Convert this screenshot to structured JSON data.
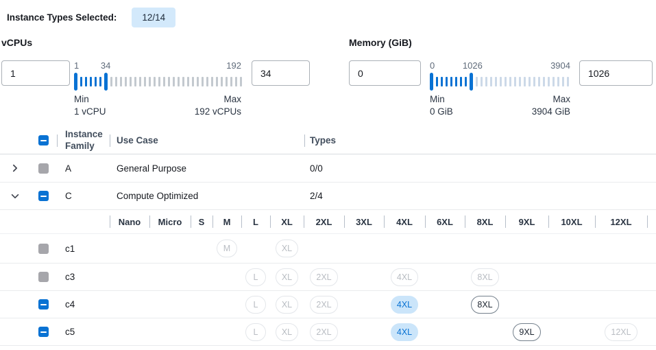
{
  "header": {
    "label": "Instance Types Selected:",
    "badge": "12/14"
  },
  "colors": {
    "accent": "#0972d3",
    "chip_selected_bg": "#cbe5fa",
    "badge_bg": "#d3e9fb",
    "tick_inactive_vcpu": "#c3c9cf",
    "tick_inactive_memory": "#ccd9e8"
  },
  "filters": {
    "vcpus": {
      "label": "vCPUs",
      "min_value": "1",
      "max_value": "34",
      "scale": {
        "start": "1",
        "mid": "34",
        "end": "192"
      },
      "slider": {
        "total_ticks": 35,
        "second_handle_index": 6
      },
      "min_caption": "Min",
      "min_sub": "1 vCPU",
      "max_caption": "Max",
      "max_sub": "192 vCPUs"
    },
    "memory": {
      "label": "Memory (GiB)",
      "min_value": "0",
      "max_value": "1026",
      "scale": {
        "start": "0",
        "mid": "1026",
        "end": "3904"
      },
      "slider": {
        "total_ticks": 29,
        "second_handle_index": 8
      },
      "min_caption": "Min",
      "min_sub": "0 GiB",
      "max_caption": "Max",
      "max_sub": "3904 GiB"
    }
  },
  "table": {
    "columns": {
      "family": "Instance Family",
      "use_case": "Use Case",
      "types": "Types"
    },
    "select_all_state": "indeterminate",
    "size_columns": [
      "Nano",
      "Micro",
      "S",
      "M",
      "L",
      "XL",
      "2XL",
      "3XL",
      "4XL",
      "6XL",
      "8XL",
      "9XL",
      "10XL",
      "12XL"
    ],
    "families": [
      {
        "name": "A",
        "use_case": "General Purpose",
        "types": "0/0",
        "expanded": false,
        "checkbox": "disabled",
        "children": []
      },
      {
        "name": "C",
        "use_case": "Compute Optimized",
        "types": "2/4",
        "expanded": true,
        "checkbox": "indeterminate",
        "children": [
          {
            "name": "c1",
            "checkbox": "disabled",
            "chips": [
              {
                "size": "M",
                "state": "disabled"
              },
              {
                "size": "XL",
                "state": "disabled"
              }
            ]
          },
          {
            "name": "c3",
            "checkbox": "disabled",
            "chips": [
              {
                "size": "L",
                "state": "disabled"
              },
              {
                "size": "XL",
                "state": "disabled"
              },
              {
                "size": "2XL",
                "state": "disabled"
              },
              {
                "size": "4XL",
                "state": "disabled"
              },
              {
                "size": "8XL",
                "state": "disabled"
              }
            ]
          },
          {
            "name": "c4",
            "checkbox": "indeterminate",
            "chips": [
              {
                "size": "L",
                "state": "disabled"
              },
              {
                "size": "XL",
                "state": "disabled"
              },
              {
                "size": "2XL",
                "state": "disabled"
              },
              {
                "size": "4XL",
                "state": "selected"
              },
              {
                "size": "8XL",
                "state": "enabled"
              }
            ]
          },
          {
            "name": "c5",
            "checkbox": "indeterminate",
            "chips": [
              {
                "size": "L",
                "state": "disabled"
              },
              {
                "size": "XL",
                "state": "disabled"
              },
              {
                "size": "2XL",
                "state": "disabled"
              },
              {
                "size": "4XL",
                "state": "selected"
              },
              {
                "size": "9XL",
                "state": "enabled"
              },
              {
                "size": "12XL",
                "state": "disabled"
              }
            ]
          }
        ]
      }
    ]
  }
}
